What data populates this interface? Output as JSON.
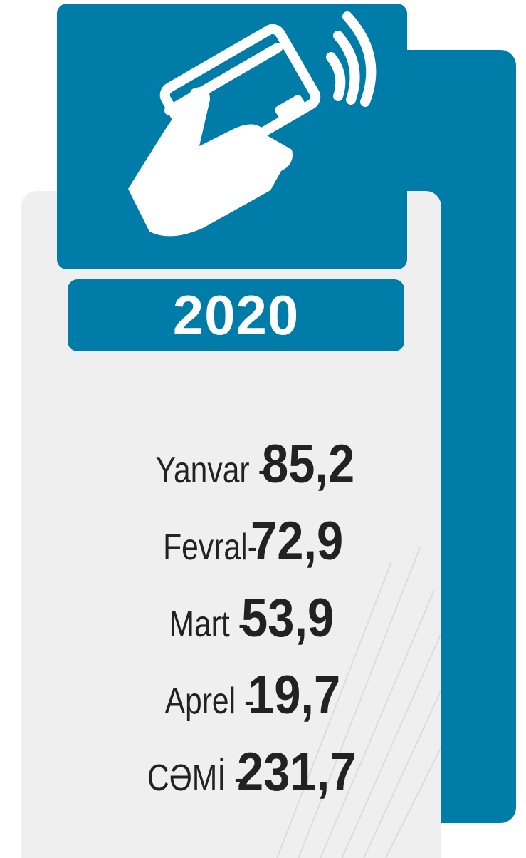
{
  "year": "2020",
  "items": [
    {
      "label": "Yanvar -",
      "value": "85,2"
    },
    {
      "label": "Fevral-",
      "value": "72,9"
    },
    {
      "label": "Mart -",
      "value": "53,9"
    },
    {
      "label": "Aprel -",
      "value": "19,7"
    },
    {
      "label": "CƏMİ -",
      "value": "231,7"
    }
  ]
}
